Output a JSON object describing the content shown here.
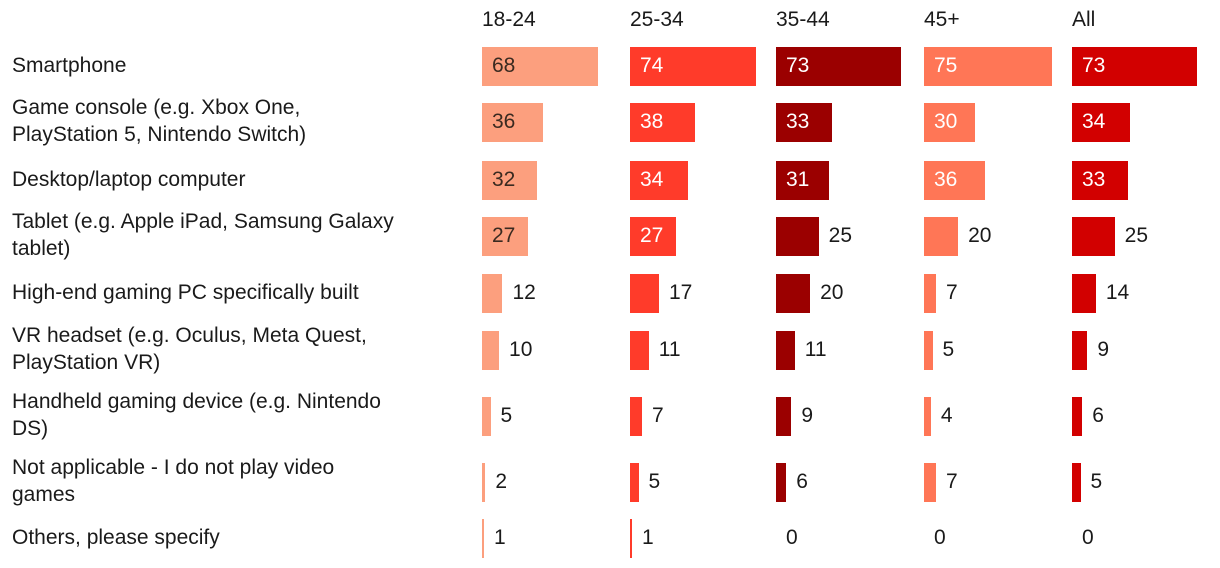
{
  "chart_data": {
    "type": "bar",
    "orientation": "horizontal-small-multiples",
    "title": "",
    "categories": [
      "Smartphone",
      "Game console (e.g. Xbox One, PlayStation 5, Nintendo Switch)",
      "Desktop/laptop computer",
      "Tablet (e.g. Apple iPad, Samsung Galaxy tablet)",
      "High-end gaming PC specifically built",
      "VR headset (e.g. Oculus, Meta Quest, PlayStation VR)",
      "Handheld gaming device (e.g. Nintendo DS)",
      "Not applicable - I do not play video games",
      "Others, please specify"
    ],
    "category_lines": [
      [
        "Smartphone"
      ],
      [
        "Game console (e.g. Xbox One,",
        "PlayStation 5, Nintendo Switch)"
      ],
      [
        "Desktop/laptop computer"
      ],
      [
        "Tablet (e.g. Apple iPad, Samsung Galaxy",
        "tablet)"
      ],
      [
        "High-end gaming PC specifically built"
      ],
      [
        "VR headset (e.g. Oculus, Meta Quest,",
        "PlayStation VR)"
      ],
      [
        "Handheld gaming device (e.g. Nintendo",
        "DS)"
      ],
      [
        "Not applicable - I do not play video",
        "games"
      ],
      [
        "Others, please specify"
      ]
    ],
    "series": [
      {
        "name": "18-24",
        "color": "#fc9f7e",
        "values": [
          68,
          36,
          32,
          27,
          12,
          10,
          5,
          2,
          1
        ]
      },
      {
        "name": "25-34",
        "color": "#ff3b2a",
        "values": [
          74,
          38,
          34,
          27,
          17,
          11,
          7,
          5,
          1
        ]
      },
      {
        "name": "35-44",
        "color": "#9b0000",
        "values": [
          73,
          33,
          31,
          25,
          20,
          11,
          9,
          6,
          0
        ]
      },
      {
        "name": "45+",
        "color": "#ff7656",
        "values": [
          75,
          30,
          36,
          20,
          7,
          5,
          4,
          7,
          0
        ]
      },
      {
        "name": "All",
        "color": "#d20000",
        "values": [
          73,
          34,
          33,
          25,
          14,
          9,
          6,
          5,
          0
        ]
      }
    ],
    "xlim": [
      0,
      75
    ],
    "legend": "none",
    "grid": false
  }
}
